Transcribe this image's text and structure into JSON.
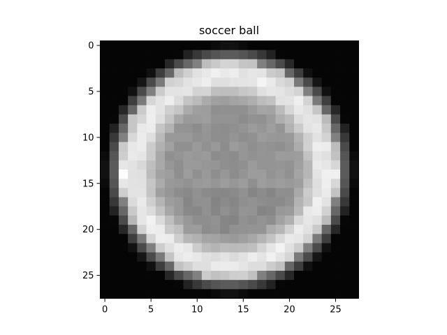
{
  "chart_data": {
    "type": "heatmap",
    "title": "soccer ball",
    "colormap": "grayscale",
    "grid": false,
    "rows": 28,
    "cols": 28,
    "xlim": [
      -0.5,
      27.5
    ],
    "ylim": [
      27.5,
      -0.5
    ],
    "x_ticks": [
      0,
      5,
      10,
      15,
      20,
      25
    ],
    "y_ticks": [
      0,
      5,
      10,
      15,
      20,
      25
    ],
    "value_model": {
      "description_units": "pixel intensity 0 (black) to 255 (white), circular ball image",
      "center": [
        13.5,
        13.5
      ],
      "disk_radius": 12.5,
      "ring_peak_value": 235,
      "interior_value": 148,
      "outside_value": 5,
      "highlight_value": 255
    }
  }
}
